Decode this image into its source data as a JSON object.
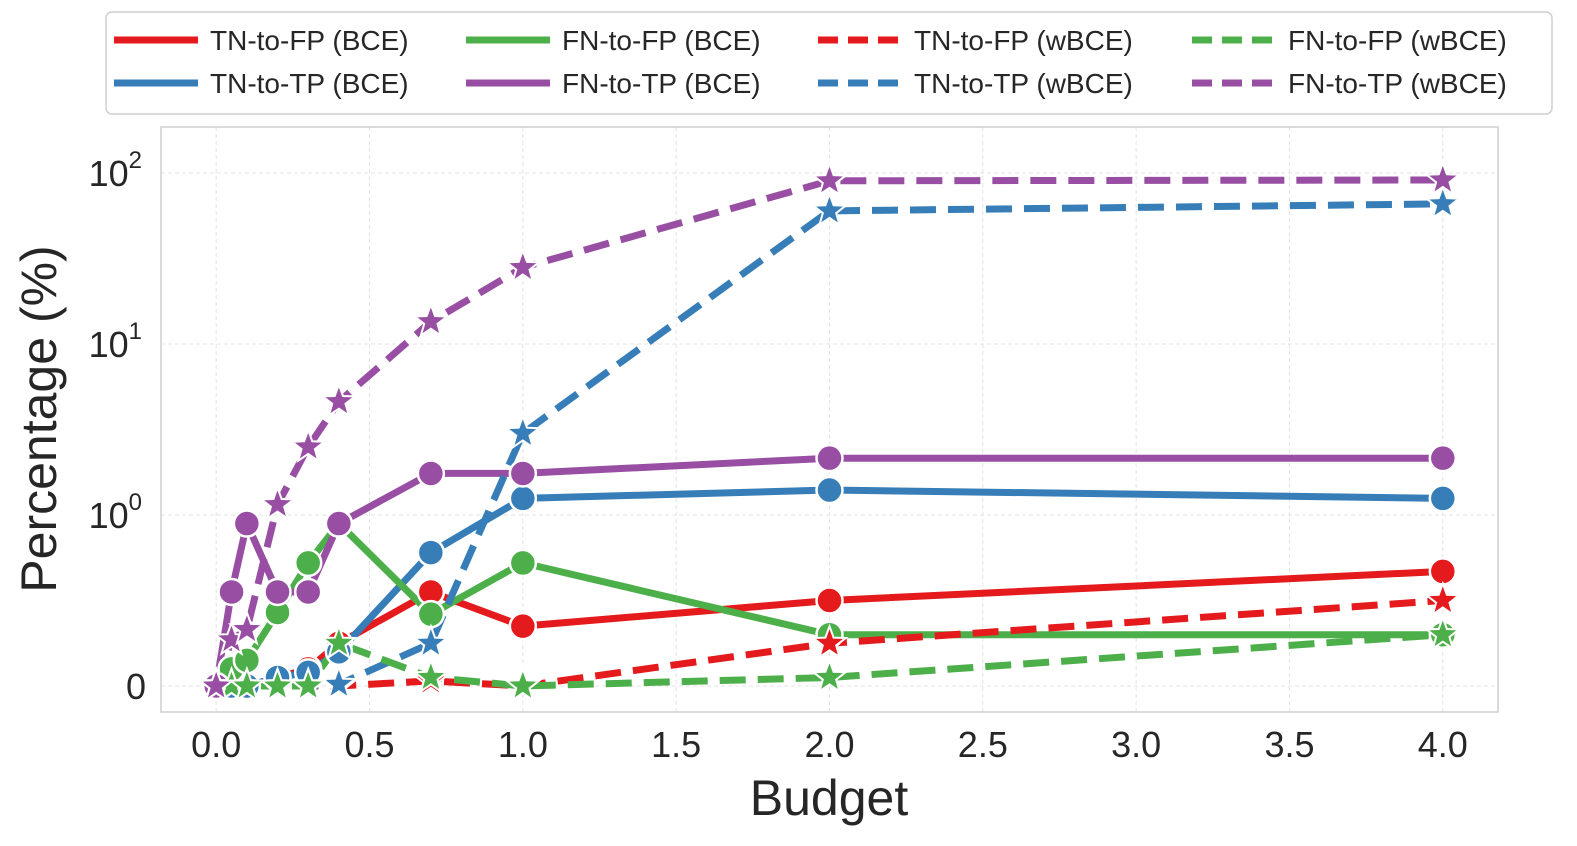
{
  "chart_data": {
    "type": "line",
    "xlabel": "Budget",
    "ylabel": "Percentage (%)",
    "yscale": "symlog",
    "xlim": [
      -0.18,
      4.18
    ],
    "ylim": [
      -0.15,
      100
    ],
    "grid": true,
    "legend_position": "top",
    "x_ticks": [
      {
        "value": 0.0,
        "label": "0.0"
      },
      {
        "value": 0.5,
        "label": "0.5"
      },
      {
        "value": 1.0,
        "label": "1.0"
      },
      {
        "value": 1.5,
        "label": "1.5"
      },
      {
        "value": 2.0,
        "label": "2.0"
      },
      {
        "value": 2.5,
        "label": "2.5"
      },
      {
        "value": 3.0,
        "label": "3.0"
      },
      {
        "value": 3.5,
        "label": "3.5"
      },
      {
        "value": 4.0,
        "label": "4.0"
      }
    ],
    "y_ticks": [
      {
        "value": 0,
        "base": "0",
        "exp": ""
      },
      {
        "value": 1,
        "base": "10",
        "exp": "0"
      },
      {
        "value": 10,
        "base": "10",
        "exp": "1"
      },
      {
        "value": 100,
        "base": "10",
        "exp": "2"
      }
    ],
    "colors": {
      "red": "#e41a1c",
      "blue": "#377eb8",
      "green": "#4daf4a",
      "purple": "#984ea3"
    },
    "series": [
      {
        "name": "TN-to-FP (BCE)",
        "color": "#e41a1c",
        "dash": false,
        "marker": "circle",
        "x": [
          0.0,
          0.05,
          0.1,
          0.2,
          0.3,
          0.4,
          0.7,
          1.0,
          2.0,
          4.0
        ],
        "y": [
          0.0,
          0.0,
          0.0,
          0.05,
          0.1,
          0.25,
          0.55,
          0.35,
          0.5,
          0.67
        ]
      },
      {
        "name": "TN-to-TP (BCE)",
        "color": "#377eb8",
        "dash": false,
        "marker": "circle",
        "x": [
          0.0,
          0.05,
          0.1,
          0.2,
          0.3,
          0.4,
          0.7,
          1.0,
          2.0,
          4.0
        ],
        "y": [
          0.0,
          0.0,
          0.0,
          0.05,
          0.08,
          0.2,
          0.78,
          1.25,
          1.4,
          1.25
        ]
      },
      {
        "name": "FN-to-FP (BCE)",
        "color": "#4daf4a",
        "dash": false,
        "marker": "circle",
        "x": [
          0.0,
          0.05,
          0.1,
          0.2,
          0.3,
          0.4,
          0.7,
          1.0,
          2.0,
          4.0
        ],
        "y": [
          0.0,
          0.1,
          0.15,
          0.43,
          0.72,
          0.95,
          0.42,
          0.72,
          0.3,
          0.3
        ]
      },
      {
        "name": "FN-to-TP (BCE)",
        "color": "#984ea3",
        "dash": false,
        "marker": "circle",
        "x": [
          0.0,
          0.05,
          0.1,
          0.2,
          0.3,
          0.4,
          0.7,
          1.0,
          2.0,
          4.0
        ],
        "y": [
          0.0,
          0.55,
          0.95,
          0.55,
          0.55,
          0.95,
          1.75,
          1.75,
          2.15,
          2.15
        ]
      },
      {
        "name": "TN-to-FP (wBCE)",
        "color": "#e41a1c",
        "dash": true,
        "marker": "star",
        "x": [
          0.0,
          0.05,
          0.1,
          0.2,
          0.3,
          0.4,
          0.7,
          1.0,
          2.0,
          4.0
        ],
        "y": [
          0.0,
          0.0,
          0.0,
          0.0,
          0.0,
          0.0,
          0.03,
          0.0,
          0.25,
          0.5
        ]
      },
      {
        "name": "TN-to-TP (wBCE)",
        "color": "#377eb8",
        "dash": true,
        "marker": "star",
        "x": [
          0.0,
          0.05,
          0.1,
          0.2,
          0.3,
          0.4,
          0.7,
          1.0,
          2.0,
          4.0
        ],
        "y": [
          0.0,
          0.0,
          0.0,
          0.0,
          0.0,
          0.01,
          0.25,
          3.0,
          60.0,
          66.0
        ]
      },
      {
        "name": "FN-to-FP (wBCE)",
        "color": "#4daf4a",
        "dash": true,
        "marker": "star",
        "x": [
          0.0,
          0.05,
          0.1,
          0.2,
          0.3,
          0.4,
          0.7,
          1.0,
          2.0,
          4.0
        ],
        "y": [
          0.0,
          0.0,
          0.0,
          0.0,
          0.0,
          0.25,
          0.05,
          0.0,
          0.05,
          0.3
        ]
      },
      {
        "name": "FN-to-TP (wBCE)",
        "color": "#984ea3",
        "dash": true,
        "marker": "star",
        "x": [
          0.0,
          0.05,
          0.1,
          0.2,
          0.3,
          0.4,
          0.7,
          1.0,
          2.0,
          4.0
        ],
        "y": [
          0.0,
          0.27,
          0.33,
          1.15,
          2.5,
          4.6,
          13.5,
          28.0,
          90.0,
          91.0
        ]
      }
    ]
  }
}
